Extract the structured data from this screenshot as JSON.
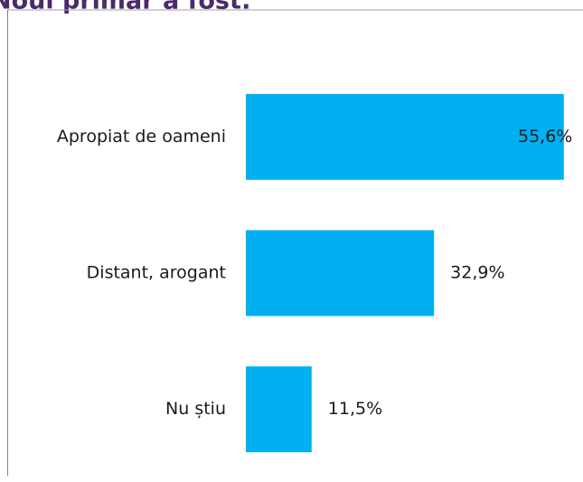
{
  "chart_data": {
    "type": "hbar",
    "title": "Noul primar a fost:",
    "categories": [
      "Apropiat de oameni",
      "Distant, arogant",
      "Nu știu"
    ],
    "values": [
      55.6,
      32.9,
      11.5
    ],
    "value_labels": [
      "55,6%",
      "32,9%",
      "11,5%"
    ],
    "color": "#00b0f0",
    "xlim": [
      0,
      58
    ]
  }
}
